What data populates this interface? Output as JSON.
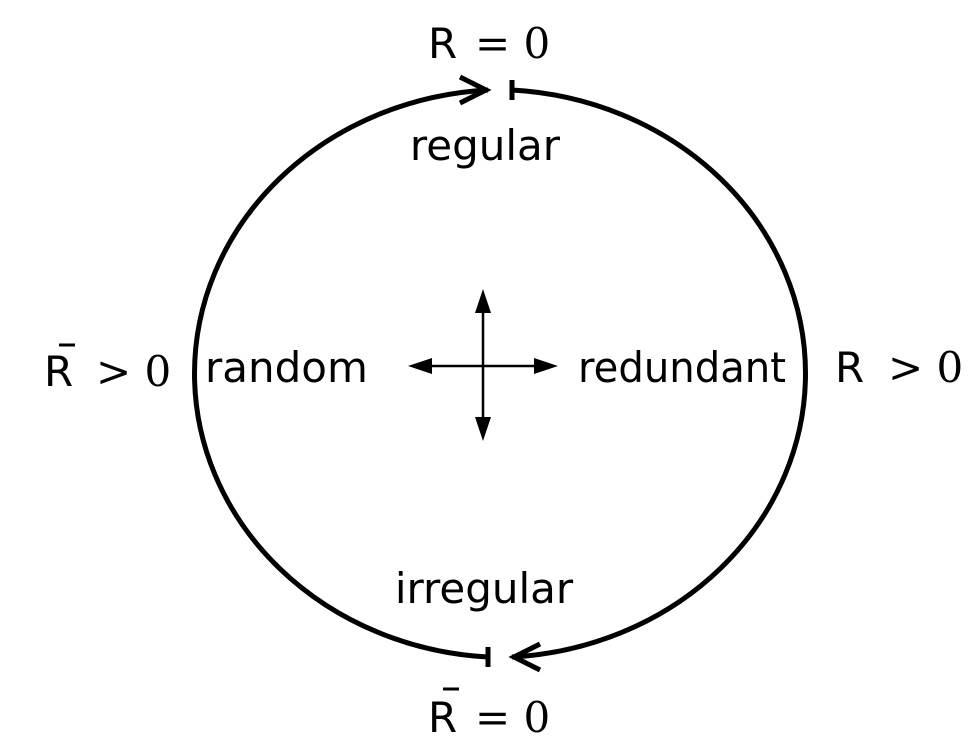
{
  "diagram": {
    "labels": {
      "top": "regular",
      "bottom": "irregular",
      "left": "random",
      "right": "redundant"
    },
    "conditions": {
      "top": {
        "symbol": "R",
        "bar": false,
        "relation": "= 0"
      },
      "bottom": {
        "symbol": "R",
        "bar": true,
        "relation": "= 0"
      },
      "left": {
        "symbol": "R",
        "bar": true,
        "relation": "> 0"
      },
      "right": {
        "symbol": "R",
        "bar": false,
        "relation": "> 0"
      }
    },
    "colors": {
      "stroke": "#000000",
      "background": "#ffffff"
    }
  }
}
